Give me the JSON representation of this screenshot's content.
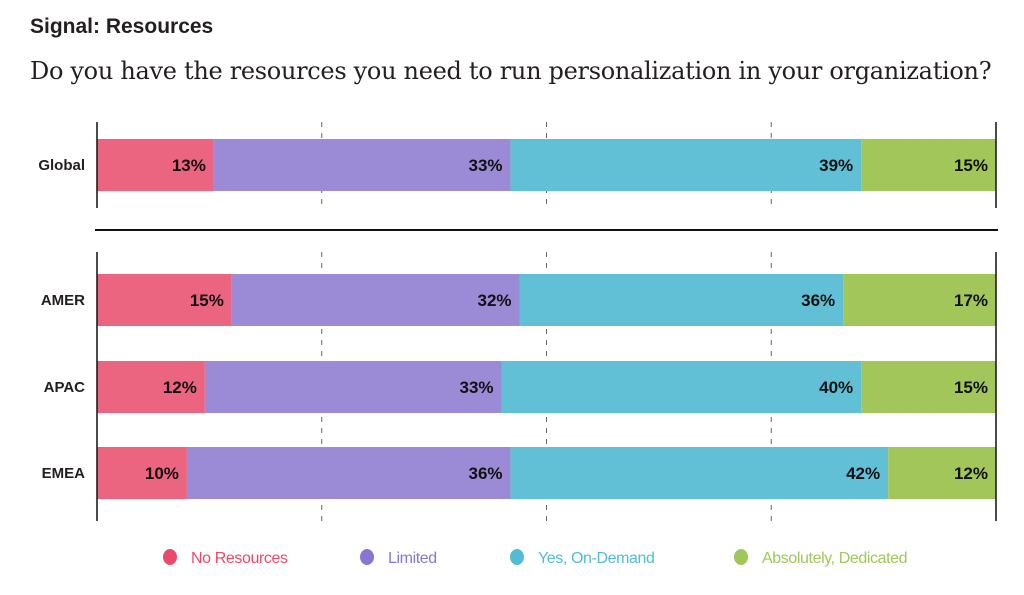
{
  "chart_data": {
    "type": "bar",
    "orientation": "horizontal",
    "stacked": true,
    "title": "Signal: Resources",
    "subtitle": "Do you have the resources you need to run personalization in your organization?",
    "categories": [
      "Global",
      "AMER",
      "APAC",
      "EMEA"
    ],
    "series": [
      {
        "name": "No Resources",
        "color": "#ec6580",
        "legend_color": "#e94a6c",
        "values": [
          13,
          15,
          12,
          10
        ]
      },
      {
        "name": "Limited",
        "color": "#9b8ad6",
        "legend_color": "#8a76d2",
        "values": [
          33,
          32,
          33,
          36
        ]
      },
      {
        "name": "Yes, On-Demand",
        "color": "#62c0d6",
        "legend_color": "#52bcd6",
        "values": [
          39,
          36,
          40,
          42
        ]
      },
      {
        "name": "Absolutely, Dedicated",
        "color": "#a2c65a",
        "legend_color": "#9fc75a",
        "values": [
          15,
          17,
          15,
          12
        ]
      }
    ],
    "value_suffix": "%",
    "xlim": [
      0,
      100
    ],
    "gridlines": [
      25,
      50,
      75
    ],
    "grid_style": "dashed",
    "legend_position": "bottom"
  }
}
